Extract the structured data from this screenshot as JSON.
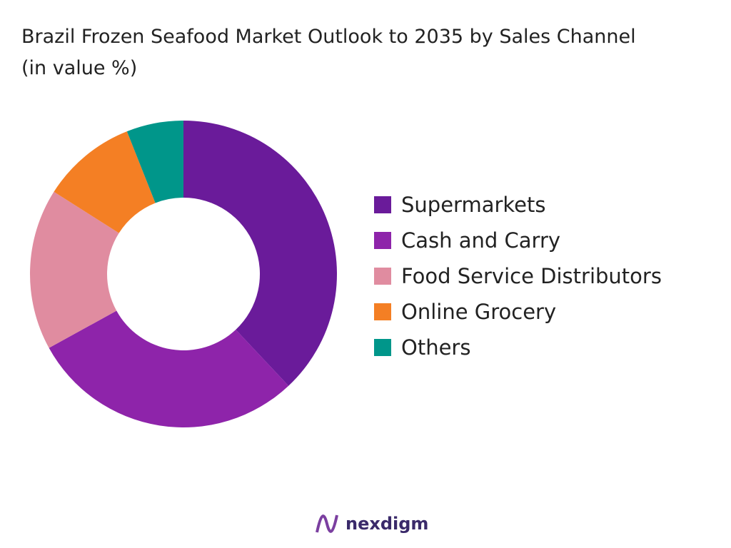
{
  "chart_data": {
    "type": "donut",
    "title": "Brazil Frozen Seafood Market Outlook to 2035 by Sales Channel (in value %)",
    "categories": [
      "Supermarkets",
      "Cash and Carry",
      "Food Service Distributors",
      "Online Grocery",
      "Others"
    ],
    "values": [
      38,
      29,
      17,
      10,
      6
    ],
    "colors": [
      "#6a1b9a",
      "#8e24aa",
      "#e08ca0",
      "#f47f24",
      "#00968a"
    ],
    "legend": "right"
  },
  "footer": {
    "brand": "nexdigm"
  }
}
